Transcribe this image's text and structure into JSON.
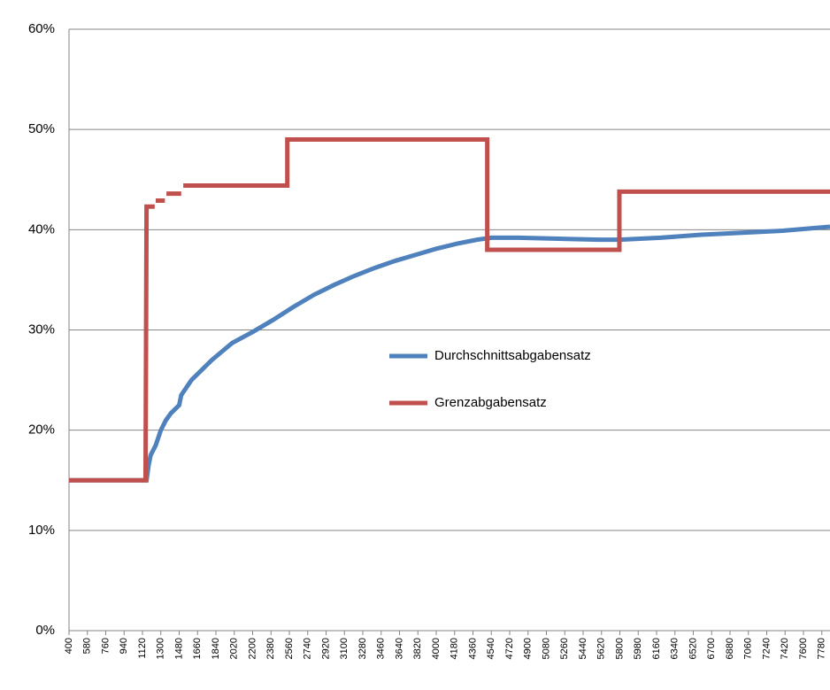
{
  "chart_data": {
    "type": "line",
    "xlim": [
      400,
      7860
    ],
    "xticks": [
      400,
      580,
      760,
      940,
      1120,
      1300,
      1480,
      1660,
      1840,
      2020,
      2200,
      2380,
      2560,
      2740,
      2920,
      3100,
      3280,
      3460,
      3640,
      3820,
      4000,
      4180,
      4360,
      4540,
      4720,
      4900,
      5080,
      5260,
      5440,
      5620,
      5800,
      5980,
      6160,
      6340,
      6520,
      6700,
      6880,
      7060,
      7240,
      7420,
      7600,
      7780
    ],
    "ylim": [
      0,
      60
    ],
    "yticks": [
      {
        "value": 0,
        "label": "0%"
      },
      {
        "value": 10,
        "label": "10%"
      },
      {
        "value": 20,
        "label": "20%"
      },
      {
        "value": 30,
        "label": "30%"
      },
      {
        "value": 40,
        "label": "40%"
      },
      {
        "value": 50,
        "label": "50%"
      },
      {
        "value": 60,
        "label": "60%"
      }
    ],
    "grid": true,
    "legend": "center",
    "series": [
      {
        "name": "Durchschnittsabgabensatz",
        "color": "#4f81bd",
        "x": [
          400,
          1160,
          1180,
          1200,
          1250,
          1300,
          1350,
          1400,
          1480,
          1500,
          1600,
          1800,
          2000,
          2200,
          2400,
          2600,
          2800,
          3000,
          3200,
          3400,
          3600,
          3800,
          4000,
          4200,
          4400,
          4540,
          4800,
          5200,
          5600,
          5800,
          6200,
          6600,
          7000,
          7400,
          7860
        ],
        "values": [
          15,
          15,
          16.5,
          17.5,
          18.5,
          20,
          21,
          21.7,
          22.5,
          23.5,
          25,
          27,
          28.7,
          29.8,
          31,
          32.3,
          33.5,
          34.5,
          35.4,
          36.2,
          36.9,
          37.5,
          38.1,
          38.6,
          39,
          39.2,
          39.2,
          39.1,
          39,
          39,
          39.2,
          39.5,
          39.7,
          39.9,
          40.3
        ]
      },
      {
        "name": "Grenzabgabensatz",
        "color": "#c0504d",
        "x": [
          400,
          1150,
          1160,
          1240,
          1245,
          1250,
          1340,
          1345,
          1355,
          1500,
          1510,
          1520,
          2540,
          2540,
          4500,
          4500,
          5795,
          5795,
          7860
        ],
        "values": [
          15,
          15,
          42.3,
          42.3,
          null,
          42.9,
          42.9,
          null,
          43.6,
          43.6,
          null,
          44.4,
          44.4,
          49,
          49,
          38,
          38,
          43.8,
          43.8
        ]
      }
    ]
  }
}
